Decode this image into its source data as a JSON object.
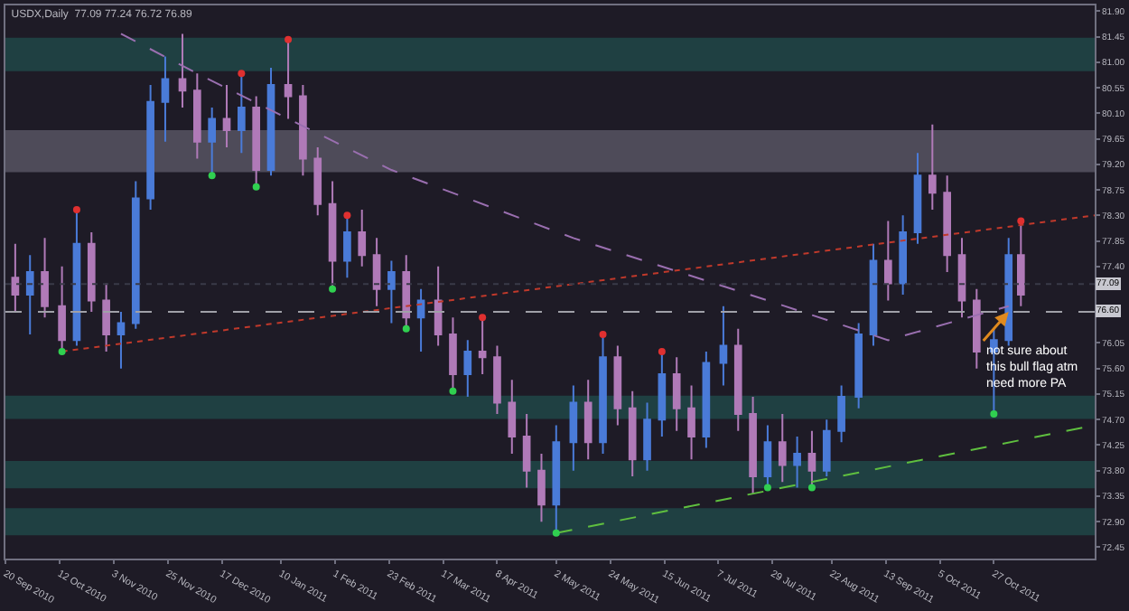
{
  "chart_data": {
    "type": "candlestick",
    "title": "USDX,Daily  77.09 77.24 76.72 76.89",
    "x": [
      "2010-09-24",
      "2010-09-30",
      "2010-10-06",
      "2010-10-13",
      "2010-10-19",
      "2010-10-25",
      "2010-10-31",
      "2010-11-06",
      "2010-11-12",
      "2010-11-18",
      "2010-11-24",
      "2010-12-01",
      "2010-12-07",
      "2010-12-13",
      "2010-12-19",
      "2010-12-25",
      "2010-12-31",
      "2011-01-06",
      "2011-01-13",
      "2011-01-19",
      "2011-01-25",
      "2011-01-31",
      "2011-02-06",
      "2011-02-12",
      "2011-02-18",
      "2011-02-24",
      "2011-03-02",
      "2011-03-08",
      "2011-03-15",
      "2011-03-21",
      "2011-03-27",
      "2011-04-02",
      "2011-04-08",
      "2011-04-14",
      "2011-04-20",
      "2011-04-26",
      "2011-05-02",
      "2011-05-09",
      "2011-05-15",
      "2011-05-21",
      "2011-05-27",
      "2011-06-02",
      "2011-06-08",
      "2011-06-14",
      "2011-06-20",
      "2011-06-26",
      "2011-07-02",
      "2011-07-09",
      "2011-07-15",
      "2011-07-21",
      "2011-07-27",
      "2011-08-02",
      "2011-08-08",
      "2011-08-14",
      "2011-08-20",
      "2011-08-26",
      "2011-09-02",
      "2011-09-08",
      "2011-09-14",
      "2011-09-20",
      "2011-09-26",
      "2011-10-02",
      "2011-10-08",
      "2011-10-14",
      "2011-10-20",
      "2011-10-27",
      "2011-11-02",
      "2011-11-07"
    ],
    "ohlc": [
      [
        77.2,
        77.8,
        76.6,
        76.9
      ],
      [
        76.9,
        77.6,
        76.2,
        77.3
      ],
      [
        77.3,
        77.9,
        76.5,
        76.7
      ],
      [
        76.7,
        77.4,
        75.9,
        76.1
      ],
      [
        76.1,
        78.4,
        76.0,
        77.8
      ],
      [
        77.8,
        78.0,
        76.6,
        76.8
      ],
      [
        76.8,
        77.1,
        75.9,
        76.2
      ],
      [
        76.2,
        76.6,
        75.6,
        76.4
      ],
      [
        76.4,
        78.9,
        76.3,
        78.6
      ],
      [
        78.6,
        80.6,
        78.4,
        80.3
      ],
      [
        80.3,
        81.1,
        79.6,
        80.7
      ],
      [
        80.7,
        81.5,
        80.2,
        80.5
      ],
      [
        80.5,
        80.8,
        79.3,
        79.6
      ],
      [
        79.6,
        80.2,
        79.0,
        80.0
      ],
      [
        80.0,
        80.6,
        79.5,
        79.8
      ],
      [
        79.8,
        80.8,
        79.4,
        80.2
      ],
      [
        80.2,
        80.4,
        78.8,
        79.1
      ],
      [
        79.1,
        80.9,
        79.0,
        80.6
      ],
      [
        80.6,
        81.4,
        80.0,
        80.4
      ],
      [
        80.4,
        80.6,
        79.0,
        79.3
      ],
      [
        79.3,
        79.5,
        78.3,
        78.5
      ],
      [
        78.5,
        78.9,
        77.0,
        77.5
      ],
      [
        77.5,
        78.3,
        77.2,
        78.0
      ],
      [
        78.0,
        78.4,
        77.4,
        77.6
      ],
      [
        77.6,
        77.9,
        76.7,
        77.0
      ],
      [
        77.0,
        77.5,
        76.4,
        77.3
      ],
      [
        77.3,
        77.6,
        76.3,
        76.5
      ],
      [
        76.5,
        77.0,
        75.9,
        76.8
      ],
      [
        76.8,
        77.4,
        76.0,
        76.2
      ],
      [
        76.2,
        76.5,
        75.2,
        75.5
      ],
      [
        75.5,
        76.1,
        75.1,
        75.9
      ],
      [
        75.9,
        76.5,
        75.5,
        75.8
      ],
      [
        75.8,
        76.0,
        74.8,
        75.0
      ],
      [
        75.0,
        75.4,
        74.1,
        74.4
      ],
      [
        74.4,
        74.8,
        73.5,
        73.8
      ],
      [
        73.8,
        74.1,
        72.9,
        73.2
      ],
      [
        73.2,
        74.6,
        72.7,
        74.3
      ],
      [
        74.3,
        75.3,
        73.8,
        75.0
      ],
      [
        75.0,
        75.4,
        74.0,
        74.3
      ],
      [
        74.3,
        76.2,
        74.1,
        75.8
      ],
      [
        75.8,
        76.0,
        74.6,
        74.9
      ],
      [
        74.9,
        75.2,
        73.7,
        74.0
      ],
      [
        74.0,
        75.0,
        73.8,
        74.7
      ],
      [
        74.7,
        75.9,
        74.4,
        75.5
      ],
      [
        75.5,
        75.8,
        74.5,
        74.9
      ],
      [
        74.9,
        75.3,
        74.0,
        74.4
      ],
      [
        74.4,
        75.9,
        74.2,
        75.7
      ],
      [
        75.7,
        76.7,
        75.3,
        76.0
      ],
      [
        76.0,
        76.3,
        74.5,
        74.8
      ],
      [
        74.8,
        75.1,
        73.4,
        73.7
      ],
      [
        73.7,
        74.6,
        73.5,
        74.3
      ],
      [
        74.3,
        74.8,
        73.6,
        73.9
      ],
      [
        73.9,
        74.4,
        73.5,
        74.1
      ],
      [
        74.1,
        74.5,
        73.5,
        73.8
      ],
      [
        73.8,
        74.7,
        73.7,
        74.5
      ],
      [
        74.5,
        75.3,
        74.3,
        75.1
      ],
      [
        75.1,
        76.4,
        74.9,
        76.2
      ],
      [
        76.2,
        77.8,
        76.0,
        77.5
      ],
      [
        77.5,
        78.2,
        76.8,
        77.1
      ],
      [
        77.1,
        78.3,
        76.9,
        78.0
      ],
      [
        78.0,
        79.4,
        77.8,
        79.0
      ],
      [
        79.0,
        79.9,
        78.4,
        78.7
      ],
      [
        78.7,
        79.0,
        77.3,
        77.6
      ],
      [
        77.6,
        77.9,
        76.5,
        76.8
      ],
      [
        76.8,
        77.0,
        75.6,
        75.9
      ],
      [
        75.9,
        76.3,
        74.8,
        76.1
      ],
      [
        76.1,
        77.9,
        76.0,
        77.6
      ],
      [
        77.6,
        78.2,
        76.7,
        76.9
      ]
    ],
    "colors": [
      "#b07ab8",
      "#4a7bd8",
      "#b07ab8",
      "#b07ab8",
      "#4a7bd8",
      "#b07ab8",
      "#b07ab8",
      "#4a7bd8",
      "#4a7bd8",
      "#4a7bd8",
      "#4a7bd8",
      "#b07ab8",
      "#b07ab8",
      "#4a7bd8",
      "#b07ab8",
      "#4a7bd8",
      "#b07ab8",
      "#4a7bd8",
      "#b07ab8",
      "#b07ab8",
      "#b07ab8",
      "#b07ab8",
      "#4a7bd8",
      "#b07ab8",
      "#b07ab8",
      "#4a7bd8",
      "#b07ab8",
      "#4a7bd8",
      "#b07ab8",
      "#b07ab8",
      "#4a7bd8",
      "#b07ab8",
      "#b07ab8",
      "#b07ab8",
      "#b07ab8",
      "#b07ab8",
      "#4a7bd8",
      "#4a7bd8",
      "#b07ab8",
      "#4a7bd8",
      "#b07ab8",
      "#b07ab8",
      "#4a7bd8",
      "#4a7bd8",
      "#b07ab8",
      "#b07ab8",
      "#4a7bd8",
      "#4a7bd8",
      "#b07ab8",
      "#b07ab8",
      "#4a7bd8",
      "#b07ab8",
      "#4a7bd8",
      "#b07ab8",
      "#4a7bd8",
      "#4a7bd8",
      "#4a7bd8",
      "#4a7bd8",
      "#b07ab8",
      "#4a7bd8",
      "#4a7bd8",
      "#b07ab8",
      "#b07ab8",
      "#b07ab8",
      "#b07ab8",
      "#4a7bd8",
      "#4a7bd8",
      "#b07ab8"
    ],
    "series": [
      {
        "type": "line",
        "color": "#9a6fb0",
        "line_style": "dashed",
        "marker": "none",
        "x": [
          "2010-11-06",
          "2010-12-07",
          "2011-02-24",
          "2011-05-09",
          "2011-07-27",
          "2011-09-14",
          "2011-11-02"
        ],
        "values": [
          81.5,
          80.8,
          79.1,
          77.9,
          76.8,
          76.1,
          76.7
        ]
      },
      {
        "type": "line",
        "color": "#5fbf3f",
        "line_style": "dashed",
        "marker": "none",
        "x": [
          "2011-05-02",
          "2011-12-07"
        ],
        "values": [
          72.7,
          74.6
        ]
      },
      {
        "type": "line",
        "color": "#c0392b",
        "line_style": "dotted",
        "marker": "none",
        "x": [
          "2010-10-13",
          "2011-12-07"
        ],
        "values": [
          75.9,
          78.3
        ]
      },
      {
        "type": "scatter",
        "color": "#e03030",
        "marker": "circle",
        "x": [
          "2010-10-19",
          "2010-12-25",
          "2011-01-13",
          "2011-02-06",
          "2011-04-02",
          "2011-05-21",
          "2011-06-14",
          "2011-11-07"
        ],
        "values": [
          78.4,
          80.8,
          81.4,
          78.3,
          76.5,
          76.2,
          75.9,
          78.2
        ]
      },
      {
        "type": "scatter",
        "color": "#30d050",
        "marker": "circle",
        "x": [
          "2010-10-13",
          "2010-12-13",
          "2010-12-31",
          "2011-01-31",
          "2011-03-02",
          "2011-03-21",
          "2011-05-02",
          "2011-07-27",
          "2011-08-14",
          "2011-10-27"
        ],
        "values": [
          75.9,
          79.0,
          78.8,
          77.0,
          76.3,
          75.2,
          72.7,
          73.5,
          73.5,
          74.8
        ]
      }
    ],
    "xlim": [
      "2010-09-20",
      "2011-12-07"
    ],
    "xticks": [
      {
        "value": "2010-09-20",
        "label": "20 Sep 2010"
      },
      {
        "value": "2010-10-12",
        "label": "12 Oct 2010"
      },
      {
        "value": "2010-11-03",
        "label": "3 Nov 2010"
      },
      {
        "value": "2010-11-25",
        "label": "25 Nov 2010"
      },
      {
        "value": "2010-12-17",
        "label": "17 Dec 2010"
      },
      {
        "value": "2011-01-10",
        "label": "10 Jan 2011"
      },
      {
        "value": "2011-02-01",
        "label": "1 Feb 2011"
      },
      {
        "value": "2011-02-23",
        "label": "23 Feb 2011"
      },
      {
        "value": "2011-03-17",
        "label": "17 Mar 2011"
      },
      {
        "value": "2011-04-08",
        "label": "8 Apr 2011"
      },
      {
        "value": "2011-05-02",
        "label": "2 May 2011"
      },
      {
        "value": "2011-05-24",
        "label": "24 May 2011"
      },
      {
        "value": "2011-06-15",
        "label": "15 Jun 2011"
      },
      {
        "value": "2011-07-07",
        "label": "7 Jul 2011"
      },
      {
        "value": "2011-07-29",
        "label": "29 Jul 2011"
      },
      {
        "value": "2011-08-22",
        "label": "22 Aug 2011"
      },
      {
        "value": "2011-09-13",
        "label": "13 Sep 2011"
      },
      {
        "value": "2011-10-05",
        "label": "5 Oct 2011"
      },
      {
        "value": "2011-10-27",
        "label": "27 Oct 2011"
      }
    ],
    "ylim": [
      72.25,
      82.0
    ],
    "yticks": [
      {
        "value": 81.9,
        "label": "81.90"
      },
      {
        "value": 81.45,
        "label": "81.45"
      },
      {
        "value": 81.0,
        "label": "81.00"
      },
      {
        "value": 80.55,
        "label": "80.55"
      },
      {
        "value": 80.1,
        "label": "80.10"
      },
      {
        "value": 79.65,
        "label": "79.65"
      },
      {
        "value": 79.2,
        "label": "79.20"
      },
      {
        "value": 78.75,
        "label": "78.75"
      },
      {
        "value": 78.3,
        "label": "78.30"
      },
      {
        "value": 77.85,
        "label": "77.85"
      },
      {
        "value": 77.4,
        "label": "77.40"
      },
      {
        "value": 76.05,
        "label": "76.05"
      },
      {
        "value": 75.6,
        "label": "75.60"
      },
      {
        "value": 75.15,
        "label": "75.15"
      },
      {
        "value": 74.7,
        "label": "74.70"
      },
      {
        "value": 74.25,
        "label": "74.25"
      },
      {
        "value": 73.8,
        "label": "73.80"
      },
      {
        "value": 73.35,
        "label": "73.35"
      },
      {
        "value": 72.9,
        "label": "72.90"
      },
      {
        "value": 72.45,
        "label": "72.45"
      }
    ],
    "ref_lines": [
      {
        "axis": "y",
        "value": 77.09,
        "label": "77.09",
        "color": "#3a3a48",
        "line_style": "dotted"
      },
      {
        "axis": "y",
        "value": 76.6,
        "label": "76.60",
        "color": "#a0a0a8",
        "line_style": "dashed"
      }
    ],
    "bands": [
      {
        "axis": "y",
        "from": 80.84,
        "to": 81.43,
        "color": "#1f4a4a"
      },
      {
        "axis": "y",
        "from": 79.06,
        "to": 79.8,
        "color": "#5a5866"
      },
      {
        "axis": "y",
        "from": 74.71,
        "to": 75.12,
        "color": "#1f4a4a"
      },
      {
        "axis": "y",
        "from": 73.49,
        "to": 73.97,
        "color": "#1f4a4a"
      },
      {
        "axis": "y",
        "from": 72.66,
        "to": 73.14,
        "color": "#1f4a4a"
      }
    ],
    "annotations": [
      {
        "text": "not sure about\nthis bull flag atm\nneed more PA",
        "x": "2011-11-02",
        "y": 76.6
      }
    ],
    "grid": false
  }
}
